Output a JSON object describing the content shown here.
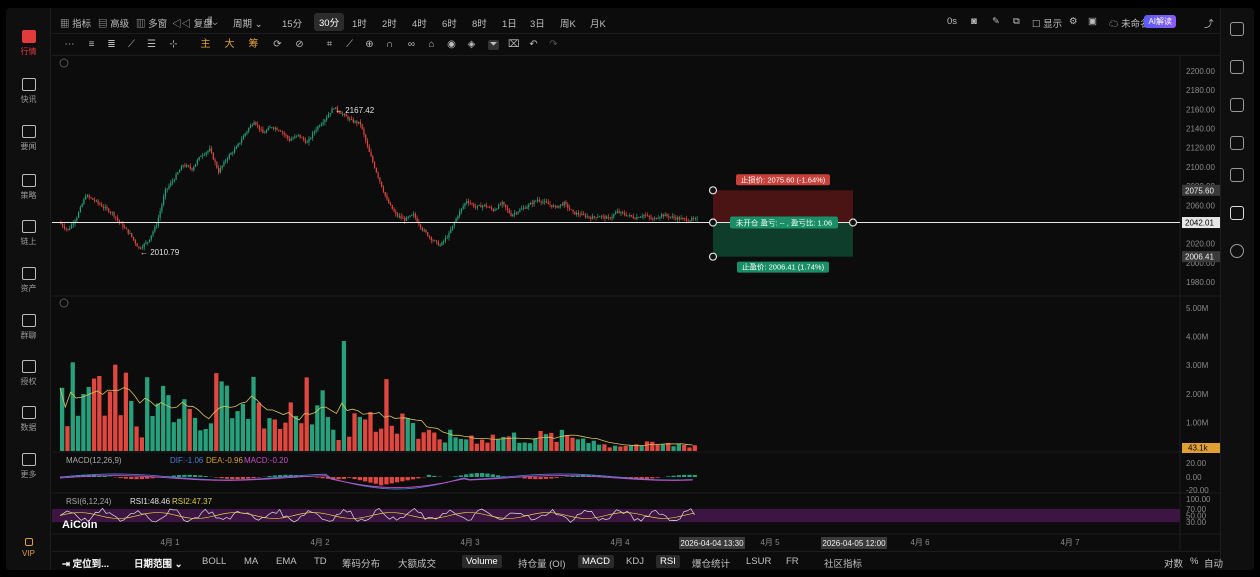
{
  "left_nav": [
    {
      "label": "行情",
      "icon": "chart-bars-icon",
      "active": true
    },
    {
      "label": "快讯",
      "icon": "news-icon"
    },
    {
      "label": "要闻",
      "icon": "document-icon"
    },
    {
      "label": "策略",
      "icon": "robot-icon"
    },
    {
      "label": "链上",
      "icon": "chain-icon"
    },
    {
      "label": "资产",
      "icon": "wallet-icon"
    },
    {
      "label": "群聊",
      "icon": "chat-icon"
    },
    {
      "label": "授权",
      "icon": "key-icon"
    },
    {
      "label": "数据",
      "icon": "monitor-icon"
    },
    {
      "label": "更多",
      "icon": "grid-icon"
    },
    {
      "label": "VIP",
      "icon": "vip-crown-icon"
    }
  ],
  "top_bar": {
    "indicator": "指标",
    "advanced": "高级",
    "multi_window": "多窗",
    "replay": "复盘",
    "period_label": "周期",
    "intervals": [
      "15分",
      "30分",
      "1时",
      "2时",
      "4时",
      "6时",
      "8时",
      "1日",
      "3日",
      "周K",
      "月K"
    ],
    "selected_interval": "30分",
    "seconds": "0s",
    "display": "显示",
    "unnamed": "未命名",
    "ai_button": "AI解读"
  },
  "tool_bar": {
    "main": "主",
    "big": "大",
    "chips": "筹"
  },
  "chart_data": {
    "type": "candlestick",
    "y_ticks": [
      "2200.00",
      "2180.00",
      "2160.00",
      "2140.00",
      "2120.00",
      "2100.00",
      "2080.00",
      "2060.00",
      "2040.00",
      "2020.00",
      "2000.00",
      "1980.00"
    ],
    "ylim": [
      1970,
      2205
    ],
    "x_labels": [
      "4月 1",
      "4月 2",
      "4月 3",
      "4月 4",
      "4月 5",
      "4月 6",
      "4月 7"
    ],
    "current_price": "2042.01",
    "stop_loss_price": "2075.60",
    "take_profit_price": "2006.41",
    "high_annotation": "← 2167.42",
    "low_annotation": "← 2010.79",
    "keypoints_time": [
      0,
      5,
      10,
      15,
      20,
      25,
      30,
      35,
      40,
      45,
      50,
      55,
      60,
      65,
      70,
      75,
      80,
      85,
      90,
      95,
      100,
      105,
      110,
      115,
      120,
      125,
      130,
      135,
      140,
      145,
      150,
      155,
      160,
      165,
      170,
      175,
      180,
      185,
      190,
      195,
      200,
      205,
      210,
      215,
      220,
      225,
      230,
      235,
      240,
      245,
      250,
      255,
      260,
      265,
      270,
      275,
      280,
      285,
      290,
      295,
      300,
      305,
      310,
      315,
      320,
      325,
      330,
      335,
      340,
      345,
      350,
      355
    ],
    "keypoints_price": [
      2042,
      2034,
      2048,
      2070,
      2065,
      2058,
      2052,
      2040,
      2030,
      2015,
      2022,
      2040,
      2075,
      2088,
      2102,
      2098,
      2112,
      2118,
      2095,
      2110,
      2120,
      2135,
      2148,
      2135,
      2142,
      2138,
      2128,
      2133,
      2125,
      2140,
      2150,
      2162,
      2155,
      2148,
      2145,
      2115,
      2090,
      2065,
      2050,
      2045,
      2050,
      2035,
      2025,
      2018,
      2030,
      2050,
      2065,
      2058,
      2060,
      2055,
      2062,
      2050,
      2055,
      2060,
      2066,
      2062,
      2058,
      2062,
      2052,
      2050,
      2047,
      2049,
      2046,
      2053,
      2050,
      2047,
      2050,
      2045,
      2050,
      2048,
      2046,
      2045
    ],
    "volume_ticks": [
      "5.00M",
      "4.00M",
      "3.00M",
      "2.00M",
      "1.00M"
    ],
    "current_volume": "43.1k",
    "macd": {
      "label": "MACD(12,26,9)",
      "dif": "DIF:-1.06",
      "dea": "DEA:-0.96",
      "macd": "MACD:-0.20",
      "ticks": [
        "20.00",
        "0.00",
        "-20.00"
      ]
    },
    "rsi": {
      "label": "RSI(6,12,24)",
      "rsi1": "RSI1:48.46",
      "rsi2": "RSI2:47.37",
      "ticks": [
        "100.00",
        "70.00",
        "50.00",
        "30.00"
      ]
    },
    "time_markers": [
      "2026-04-04 13:30",
      "2026-04-05 12:00"
    ]
  },
  "position_box": {
    "stop_loss": "止损价: 2075.60 (-1.64%)",
    "center": "未开仓  盈亏: -- , 盈亏比: 1.06",
    "take_profit": "止盈价: 2006.41 (1.74%)"
  },
  "watermark": "AiCoin",
  "bottom_bar": {
    "locate": "定位到...",
    "date_range": "日期范围",
    "tabs": [
      "BOLL",
      "MA",
      "EMA",
      "TD",
      "筹码分布",
      "大额成交",
      "Volume",
      "持仓量 (OI)",
      "MACD",
      "KDJ",
      "RSI",
      "爆仓统计",
      "LSUR",
      "FR",
      "社区指标"
    ],
    "right_items": [
      "对数",
      "%",
      "自动"
    ]
  },
  "colors": {
    "up": "#26a17b",
    "down": "#e0473f",
    "accent": "#e23b3b"
  }
}
